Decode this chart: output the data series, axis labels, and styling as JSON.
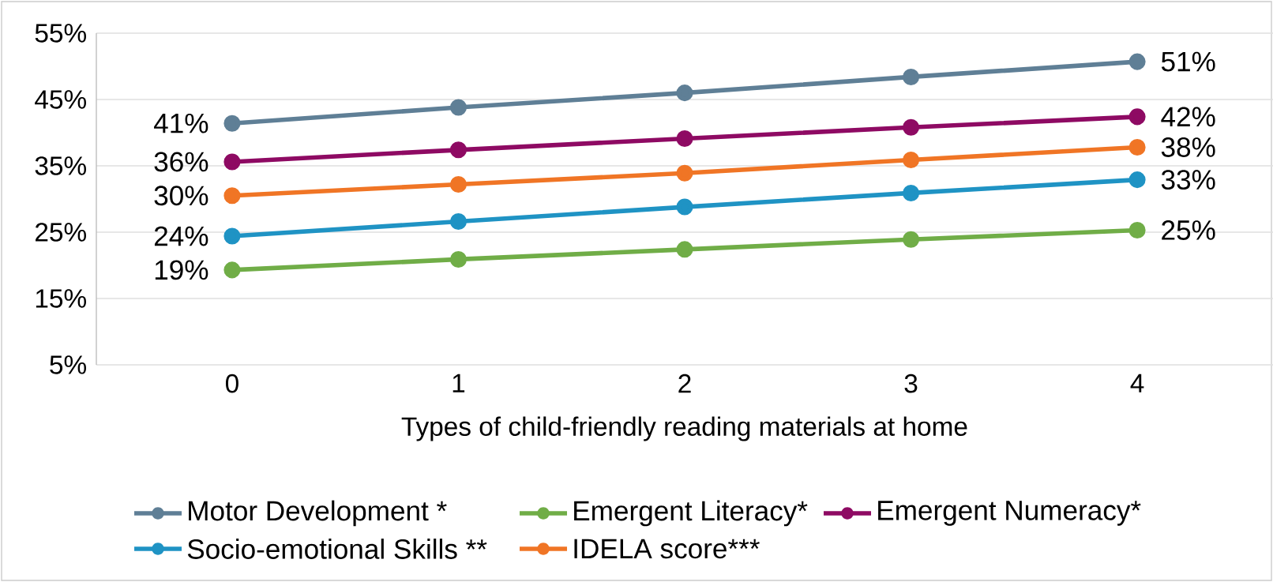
{
  "chart_data": {
    "type": "line",
    "xlabel": "Types of child-friendly reading materials at home",
    "categories": [
      "0",
      "1",
      "2",
      "3",
      "4"
    ],
    "ylim": [
      5,
      55
    ],
    "yticks": [
      {
        "value": 5,
        "label": "5%"
      },
      {
        "value": 15,
        "label": "15%"
      },
      {
        "value": 25,
        "label": "25%"
      },
      {
        "value": 35,
        "label": "35%"
      },
      {
        "value": 45,
        "label": "45%"
      },
      {
        "value": 55,
        "label": "55%"
      }
    ],
    "grid": "y",
    "legend": "bottom",
    "marker": "circle",
    "line_style": "solid",
    "series": [
      {
        "name": "Motor Development *",
        "color": "#5f7f96",
        "values": [
          41.4,
          43.8,
          46.0,
          48.4,
          50.7
        ],
        "value_labels": [
          "41%",
          null,
          null,
          null,
          "51%"
        ]
      },
      {
        "name": "Emergent Literacy*",
        "color": "#70ad47",
        "values": [
          19.3,
          20.9,
          22.4,
          23.9,
          25.3
        ],
        "value_labels": [
          "19%",
          null,
          null,
          null,
          "25%"
        ]
      },
      {
        "name": "Emergent Numeracy*",
        "color": "#8e0a63",
        "values": [
          35.6,
          37.4,
          39.1,
          40.8,
          42.4
        ],
        "value_labels": [
          "36%",
          null,
          null,
          null,
          "42%"
        ]
      },
      {
        "name": "Socio-emotional Skills **",
        "color": "#1f93c4",
        "values": [
          24.4,
          26.6,
          28.8,
          30.9,
          32.9
        ],
        "value_labels": [
          "24%",
          null,
          null,
          null,
          "33%"
        ]
      },
      {
        "name": "IDELA score***",
        "color": "#f07525",
        "values": [
          30.5,
          32.2,
          33.9,
          35.9,
          37.8
        ],
        "value_labels": [
          "30%",
          null,
          null,
          null,
          "38%"
        ]
      }
    ]
  }
}
